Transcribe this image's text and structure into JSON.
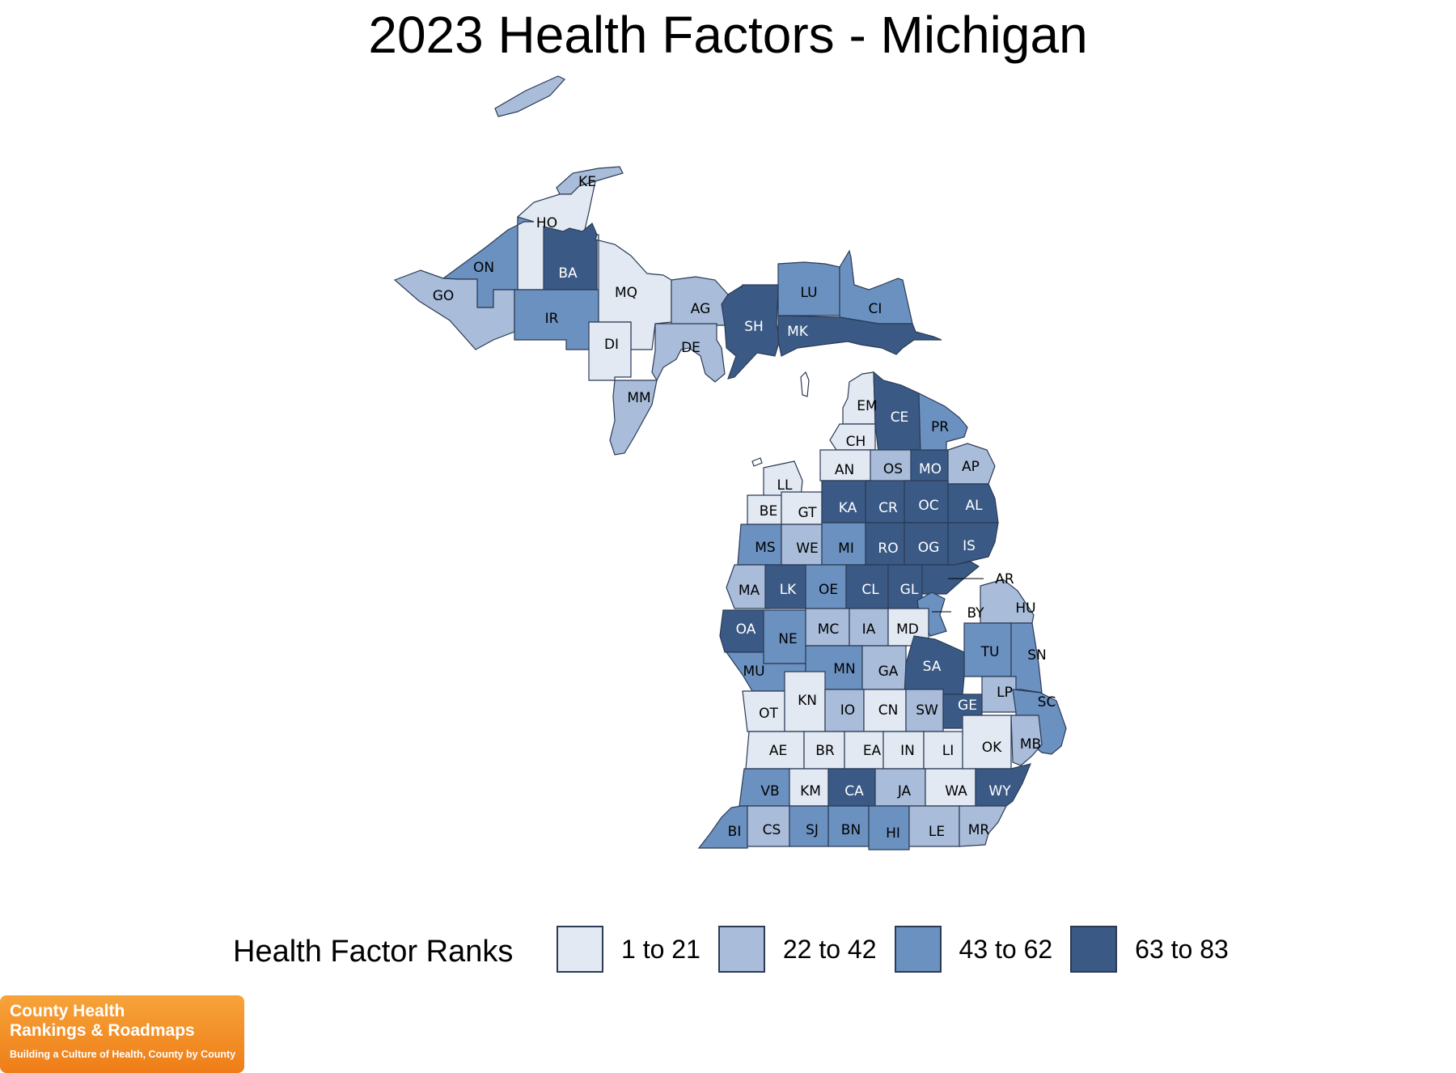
{
  "title": "2023 Health Factors - Michigan",
  "legend": {
    "title": "Health Factor Ranks",
    "items": [
      {
        "label": "1 to 21",
        "color": "#e2e9f3",
        "text_color": "#000000"
      },
      {
        "label": "22 to 42",
        "color": "#a9bcd9",
        "text_color": "#000000"
      },
      {
        "label": "43 to 62",
        "color": "#6b91c1",
        "text_color": "#000000"
      },
      {
        "label": "63 to 83",
        "color": "#3a5a85",
        "text_color": "#ffffff"
      }
    ]
  },
  "counties": [
    {
      "abbr": "KE",
      "bin": 1
    },
    {
      "abbr": "HO",
      "bin": 0
    },
    {
      "abbr": "BA",
      "bin": 3
    },
    {
      "abbr": "ON",
      "bin": 2
    },
    {
      "abbr": "GO",
      "bin": 1
    },
    {
      "abbr": "IR",
      "bin": 2
    },
    {
      "abbr": "MQ",
      "bin": 0
    },
    {
      "abbr": "DI",
      "bin": 0
    },
    {
      "abbr": "AG",
      "bin": 1
    },
    {
      "abbr": "DE",
      "bin": 1
    },
    {
      "abbr": "MM",
      "bin": 1
    },
    {
      "abbr": "SH",
      "bin": 3
    },
    {
      "abbr": "LU",
      "bin": 2
    },
    {
      "abbr": "CI",
      "bin": 2
    },
    {
      "abbr": "MK",
      "bin": 3
    },
    {
      "abbr": "EM",
      "bin": 0
    },
    {
      "abbr": "CE",
      "bin": 3
    },
    {
      "abbr": "PR",
      "bin": 2
    },
    {
      "abbr": "CH",
      "bin": 0
    },
    {
      "abbr": "AN",
      "bin": 0
    },
    {
      "abbr": "OS",
      "bin": 1
    },
    {
      "abbr": "MO",
      "bin": 3
    },
    {
      "abbr": "AP",
      "bin": 1
    },
    {
      "abbr": "LL",
      "bin": 0
    },
    {
      "abbr": "BE",
      "bin": 0
    },
    {
      "abbr": "GT",
      "bin": 0
    },
    {
      "abbr": "KA",
      "bin": 3
    },
    {
      "abbr": "CR",
      "bin": 3
    },
    {
      "abbr": "OC",
      "bin": 3
    },
    {
      "abbr": "AL",
      "bin": 3
    },
    {
      "abbr": "MS",
      "bin": 2
    },
    {
      "abbr": "WE",
      "bin": 1
    },
    {
      "abbr": "MI",
      "bin": 2
    },
    {
      "abbr": "RO",
      "bin": 3
    },
    {
      "abbr": "OG",
      "bin": 3
    },
    {
      "abbr": "IS",
      "bin": 3
    },
    {
      "abbr": "AR",
      "bin": 3
    },
    {
      "abbr": "MA",
      "bin": 1
    },
    {
      "abbr": "LK",
      "bin": 3
    },
    {
      "abbr": "OE",
      "bin": 2
    },
    {
      "abbr": "CL",
      "bin": 3
    },
    {
      "abbr": "GL",
      "bin": 3
    },
    {
      "abbr": "BY",
      "bin": 2
    },
    {
      "abbr": "HU",
      "bin": 1
    },
    {
      "abbr": "OA",
      "bin": 3
    },
    {
      "abbr": "NE",
      "bin": 2
    },
    {
      "abbr": "MC",
      "bin": 1
    },
    {
      "abbr": "IA",
      "bin": 1
    },
    {
      "abbr": "MD",
      "bin": 0
    },
    {
      "abbr": "TU",
      "bin": 2
    },
    {
      "abbr": "SN",
      "bin": 2
    },
    {
      "abbr": "MU",
      "bin": 2
    },
    {
      "abbr": "MN",
      "bin": 2
    },
    {
      "abbr": "GA",
      "bin": 1
    },
    {
      "abbr": "SA",
      "bin": 3
    },
    {
      "abbr": "OT",
      "bin": 0
    },
    {
      "abbr": "KN",
      "bin": 0
    },
    {
      "abbr": "IO",
      "bin": 1
    },
    {
      "abbr": "CN",
      "bin": 0
    },
    {
      "abbr": "SW",
      "bin": 1
    },
    {
      "abbr": "GE",
      "bin": 3
    },
    {
      "abbr": "LP",
      "bin": 1
    },
    {
      "abbr": "SC",
      "bin": 2
    },
    {
      "abbr": "AE",
      "bin": 0
    },
    {
      "abbr": "BR",
      "bin": 0
    },
    {
      "abbr": "EA",
      "bin": 0
    },
    {
      "abbr": "IN",
      "bin": 0
    },
    {
      "abbr": "LI",
      "bin": 0
    },
    {
      "abbr": "OK",
      "bin": 0
    },
    {
      "abbr": "MB",
      "bin": 1
    },
    {
      "abbr": "VB",
      "bin": 2
    },
    {
      "abbr": "KM",
      "bin": 0
    },
    {
      "abbr": "CA",
      "bin": 3
    },
    {
      "abbr": "JA",
      "bin": 1
    },
    {
      "abbr": "WA",
      "bin": 0
    },
    {
      "abbr": "WY",
      "bin": 3
    },
    {
      "abbr": "BI",
      "bin": 2
    },
    {
      "abbr": "CS",
      "bin": 1
    },
    {
      "abbr": "SJ",
      "bin": 2
    },
    {
      "abbr": "BN",
      "bin": 2
    },
    {
      "abbr": "HI",
      "bin": 2
    },
    {
      "abbr": "LE",
      "bin": 1
    },
    {
      "abbr": "MR",
      "bin": 1
    }
  ],
  "logo": {
    "line1": "County Health",
    "line2": "Rankings & Roadmaps",
    "tagline": "Building a Culture of Health, County by County"
  }
}
